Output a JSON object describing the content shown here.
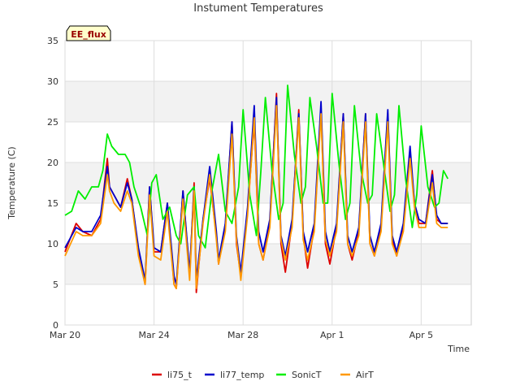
{
  "chart_data": {
    "type": "line",
    "title": "Instument Temperatures",
    "xlabel": "Time",
    "ylabel": "Temperature (C)",
    "badge": "EE_flux",
    "ylim": [
      0,
      35
    ],
    "y_ticks": [
      0,
      5,
      10,
      15,
      20,
      25,
      30,
      35
    ],
    "x_ticks": [
      {
        "label": "Mar 20",
        "day": 0
      },
      {
        "label": "Mar 24",
        "day": 4
      },
      {
        "label": "Mar 28",
        "day": 8
      },
      {
        "label": "Apr 1",
        "day": 12
      },
      {
        "label": "Apr 5",
        "day": 16
      }
    ],
    "grid": true,
    "legend_position": "bottom",
    "series": [
      {
        "name": "li75_t",
        "color": "#dd0000",
        "x": [
          0,
          0.5,
          0.8,
          1.2,
          1.6,
          1.9,
          2.0,
          2.2,
          2.5,
          2.8,
          3.0,
          3.3,
          3.6,
          3.8,
          4.0,
          4.3,
          4.6,
          4.9,
          5.0,
          5.3,
          5.6,
          5.8,
          5.9,
          6.2,
          6.5,
          6.8,
          6.9,
          7.2,
          7.5,
          7.7,
          7.9,
          8.2,
          8.5,
          8.7,
          8.9,
          9.2,
          9.5,
          9.7,
          9.9,
          10.2,
          10.5,
          10.7,
          10.9,
          11.2,
          11.5,
          11.7,
          11.9,
          12.2,
          12.5,
          12.7,
          12.9,
          13.2,
          13.5,
          13.7,
          13.9,
          14.2,
          14.5,
          14.7,
          14.9,
          15.2,
          15.5,
          15.7,
          15.9,
          16.2,
          16.5,
          16.7,
          16.9,
          17.2
        ],
        "y": [
          9,
          12.5,
          11.5,
          11,
          13,
          20.5,
          17,
          16,
          14.5,
          18,
          15.5,
          9,
          5,
          17,
          9,
          9,
          15,
          5,
          4.5,
          16.5,
          6,
          17.5,
          4,
          13,
          18,
          11,
          7.5,
          12,
          25,
          10,
          6,
          14,
          25,
          10,
          8,
          12.5,
          28.5,
          10,
          6.5,
          12.5,
          26.5,
          11,
          7,
          12,
          26.5,
          10,
          7.5,
          12,
          26,
          10,
          8,
          11.5,
          26,
          10,
          8.5,
          12,
          26,
          10.5,
          8.5,
          12,
          21,
          15,
          12.5,
          12.5,
          19,
          13,
          12.5,
          12.5
        ]
      },
      {
        "name": "li77_temp",
        "color": "#0000cc",
        "x": [
          0,
          0.5,
          0.8,
          1.2,
          1.6,
          1.9,
          2.0,
          2.2,
          2.5,
          2.8,
          3.0,
          3.3,
          3.6,
          3.8,
          4.0,
          4.3,
          4.6,
          4.9,
          5.0,
          5.3,
          5.6,
          5.8,
          5.9,
          6.2,
          6.5,
          6.8,
          6.9,
          7.2,
          7.5,
          7.7,
          7.9,
          8.2,
          8.5,
          8.7,
          8.9,
          9.2,
          9.5,
          9.7,
          9.9,
          10.2,
          10.5,
          10.7,
          10.9,
          11.2,
          11.5,
          11.7,
          11.9,
          12.2,
          12.5,
          12.7,
          12.9,
          13.2,
          13.5,
          13.7,
          13.9,
          14.2,
          14.5,
          14.7,
          14.9,
          15.2,
          15.5,
          15.7,
          15.9,
          16.2,
          16.5,
          16.7,
          16.9,
          17.2
        ],
        "y": [
          9.5,
          12,
          11.5,
          11.5,
          13.5,
          19.5,
          17,
          16,
          14.5,
          17.5,
          15.5,
          9.5,
          5.5,
          17,
          9.5,
          9,
          15,
          6,
          5,
          16.5,
          6.5,
          17,
          5.5,
          13,
          19.5,
          11.5,
          8,
          12.5,
          25,
          11,
          6.5,
          14.5,
          27,
          11.5,
          9,
          13,
          28,
          11,
          8.5,
          13,
          26,
          11.5,
          9,
          12.5,
          27.5,
          11.5,
          9,
          12.5,
          26,
          11,
          9,
          12,
          26,
          11,
          9,
          12.5,
          26.5,
          11,
          9,
          12.5,
          22,
          15,
          13,
          12.5,
          18.5,
          13.5,
          12.5,
          12.5
        ]
      },
      {
        "name": "SonicT",
        "color": "#00ee00",
        "x": [
          0,
          0.3,
          0.6,
          0.9,
          1.2,
          1.5,
          1.7,
          1.9,
          2.1,
          2.4,
          2.7,
          2.9,
          3.1,
          3.4,
          3.7,
          3.9,
          4.1,
          4.4,
          4.7,
          5.0,
          5.2,
          5.5,
          5.8,
          6.0,
          6.3,
          6.6,
          6.9,
          7.2,
          7.5,
          7.8,
          8.0,
          8.3,
          8.6,
          8.8,
          9.0,
          9.3,
          9.6,
          9.8,
          10.0,
          10.3,
          10.6,
          10.8,
          11.0,
          11.3,
          11.6,
          11.8,
          12.0,
          12.3,
          12.6,
          12.8,
          13.0,
          13.3,
          13.6,
          13.8,
          14.0,
          14.3,
          14.6,
          14.8,
          15.0,
          15.3,
          15.6,
          15.8,
          16.0,
          16.3,
          16.6,
          16.8,
          17.0,
          17.2
        ],
        "y": [
          13.5,
          14,
          16.5,
          15.5,
          17,
          17,
          19,
          23.5,
          22,
          21,
          21,
          20,
          17,
          14.5,
          11,
          17.5,
          18.5,
          13,
          14.5,
          11,
          10,
          16,
          17,
          11,
          9.5,
          16.5,
          21,
          14,
          12.5,
          17,
          26.5,
          16,
          11,
          19,
          28,
          19,
          13,
          15,
          29.5,
          21,
          15,
          17,
          28,
          22,
          15,
          15,
          28.5,
          20,
          13,
          15,
          27,
          19,
          15,
          16,
          26,
          20,
          14,
          16,
          27,
          18,
          12,
          16,
          24.5,
          17,
          14.5,
          15,
          19,
          18
        ]
      },
      {
        "name": "AirT",
        "color": "#ff9900",
        "x": [
          0,
          0.5,
          0.8,
          1.2,
          1.6,
          1.9,
          2.0,
          2.2,
          2.5,
          2.8,
          3.0,
          3.3,
          3.6,
          3.8,
          4.0,
          4.3,
          4.6,
          4.9,
          5.0,
          5.3,
          5.6,
          5.8,
          5.9,
          6.2,
          6.5,
          6.8,
          6.9,
          7.2,
          7.5,
          7.7,
          7.9,
          8.2,
          8.5,
          8.7,
          8.9,
          9.2,
          9.5,
          9.7,
          9.9,
          10.2,
          10.5,
          10.7,
          10.9,
          11.2,
          11.5,
          11.7,
          11.9,
          12.2,
          12.5,
          12.7,
          12.9,
          13.2,
          13.5,
          13.7,
          13.9,
          14.2,
          14.5,
          14.7,
          14.9,
          15.2,
          15.5,
          15.7,
          15.9,
          16.2,
          16.5,
          16.7,
          16.9,
          17.2
        ],
        "y": [
          8.5,
          11.5,
          11,
          11,
          12.5,
          18.5,
          16.5,
          15,
          14,
          16.5,
          15,
          8.5,
          5,
          16,
          8.5,
          8,
          14,
          5,
          4.5,
          15.5,
          5.5,
          16.5,
          4.5,
          12.5,
          18.5,
          10.5,
          7.5,
          11.5,
          23.5,
          10.5,
          5.5,
          13.5,
          25.5,
          10,
          8,
          12,
          27,
          10.5,
          8,
          12,
          25.5,
          10.5,
          8,
          11.5,
          26,
          10.5,
          8.5,
          11.5,
          25,
          10,
          8.5,
          11,
          25,
          10,
          8.5,
          11.5,
          25,
          10,
          8.5,
          11.5,
          20.5,
          14.5,
          12,
          12,
          17.5,
          12.5,
          12,
          12
        ]
      }
    ]
  }
}
